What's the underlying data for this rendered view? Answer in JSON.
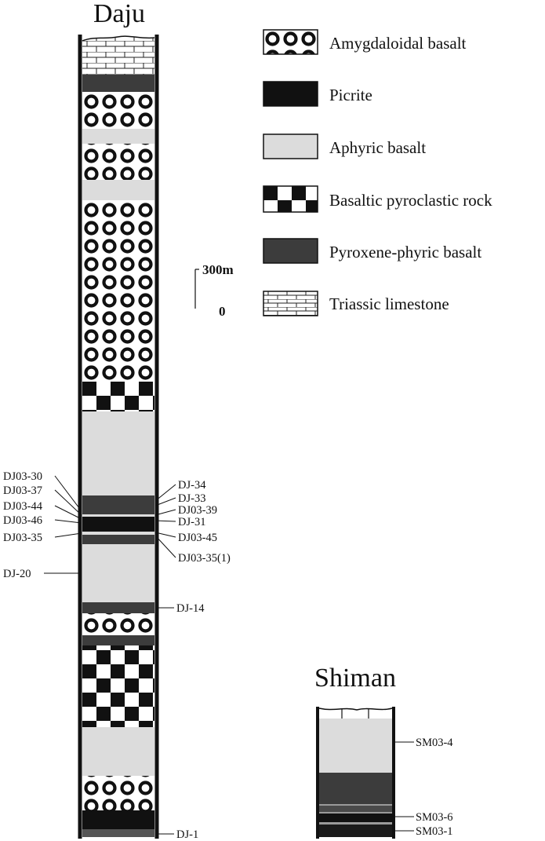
{
  "columns": {
    "daju": {
      "title": "Daju"
    },
    "shiman": {
      "title": "Shiman"
    }
  },
  "legend": [
    {
      "key": "amygdaloidal",
      "label": "Amygdaloidal basalt"
    },
    {
      "key": "picrite",
      "label": "Picrite"
    },
    {
      "key": "aphyric",
      "label": "Aphyric basalt"
    },
    {
      "key": "pyroclastic",
      "label": "Basaltic pyroclastic rock"
    },
    {
      "key": "pyroxene",
      "label": "Pyroxene-phyric basalt"
    },
    {
      "key": "limestone",
      "label": "Triassic limestone"
    }
  ],
  "scale": {
    "top_label": "300m",
    "bottom_label": "0"
  },
  "samples": {
    "daju_left": [
      "DJ03-30",
      "DJ03-37",
      "DJ03-44",
      "DJ03-46",
      "DJ03-35",
      "DJ-20"
    ],
    "daju_right": [
      "DJ-34",
      "DJ-33",
      "DJ03-39",
      "DJ-31",
      "DJ03-45",
      "DJ03-35(1)",
      "DJ-14",
      "DJ-1"
    ],
    "shiman_right": [
      "SM03-4",
      "SM03-6",
      "SM03-1"
    ]
  },
  "colors": {
    "picrite": "#111111",
    "aphyric": "#dcdcdc",
    "pyroxene": "#3c3c3c",
    "outline": "#111111"
  }
}
